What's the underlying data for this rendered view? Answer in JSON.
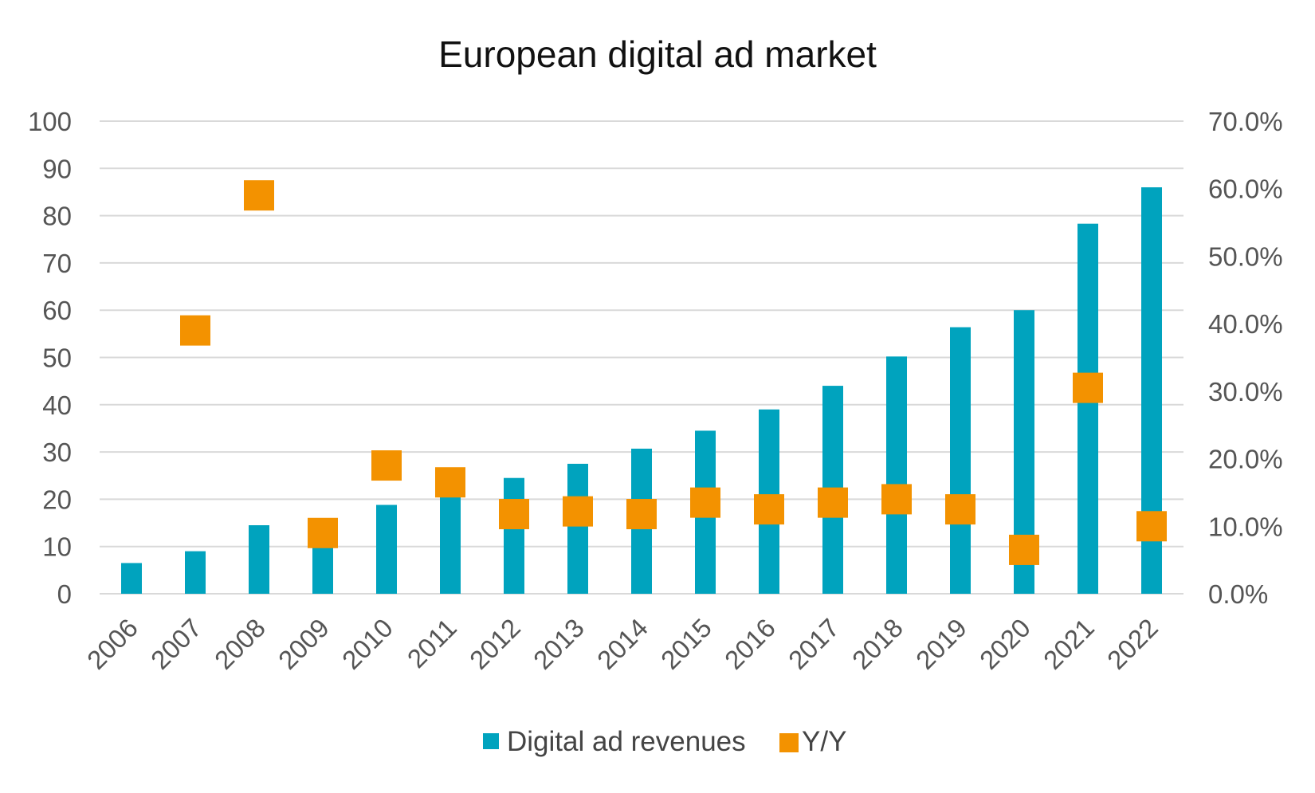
{
  "chart_data": {
    "type": "bar",
    "title": "European digital ad market",
    "categories": [
      "2006",
      "2007",
      "2008",
      "2009",
      "2010",
      "2011",
      "2012",
      "2013",
      "2014",
      "2015",
      "2016",
      "2017",
      "2018",
      "2019",
      "2020",
      "2021",
      "2022"
    ],
    "series": [
      {
        "name": "Digital ad revenues",
        "type": "bar",
        "axis": "left",
        "color": "#00a3be",
        "values": [
          6.5,
          9,
          14.5,
          10.5,
          18.8,
          21,
          24.5,
          27.5,
          30.7,
          34.5,
          39,
          44,
          50.2,
          56.4,
          60,
          78.3,
          86
        ]
      },
      {
        "name": "Y/Y",
        "type": "marker",
        "axis": "right",
        "color": "#f39200",
        "marker": "square",
        "values": [
          null,
          39.0,
          59.0,
          9.0,
          19.0,
          16.5,
          11.8,
          12.2,
          11.8,
          13.5,
          12.5,
          13.5,
          14.0,
          12.5,
          6.5,
          30.5,
          10.0
        ]
      }
    ],
    "y_left": {
      "ylim": [
        0,
        100
      ],
      "ticks": [
        "0",
        "10",
        "20",
        "30",
        "40",
        "50",
        "60",
        "70",
        "80",
        "90",
        "100"
      ]
    },
    "y_right": {
      "ylim": [
        0,
        70
      ],
      "ticks": [
        "0.0%",
        "10.0%",
        "20.0%",
        "30.0%",
        "40.0%",
        "50.0%",
        "60.0%",
        "70.0%"
      ]
    },
    "grid": true,
    "legend_position": "bottom",
    "legend": [
      "Digital ad revenues",
      "Y/Y"
    ]
  }
}
